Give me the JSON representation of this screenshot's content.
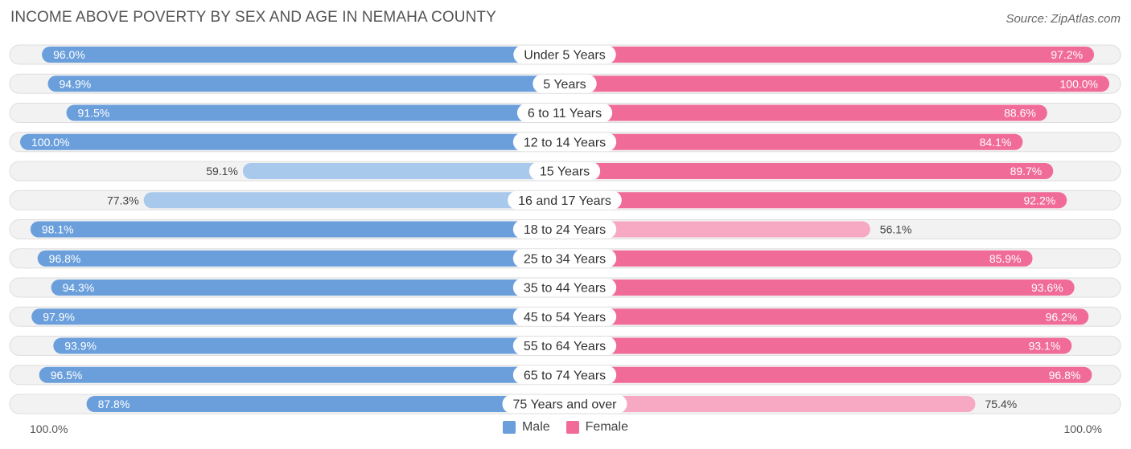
{
  "title": "INCOME ABOVE POVERTY BY SEX AND AGE IN NEMAHA COUNTY",
  "source": "Source: ZipAtlas.com",
  "axis": {
    "left_label": "100.0%",
    "right_label": "100.0%"
  },
  "legend": [
    {
      "label": "Male",
      "color": "#6a9fdc"
    },
    {
      "label": "Female",
      "color": "#f06b98"
    }
  ],
  "chart_data": {
    "type": "bar",
    "orientation": "horizontal-butterfly",
    "title": "INCOME ABOVE POVERTY BY SEX AND AGE IN NEMAHA COUNTY",
    "categories": [
      "Under 5 Years",
      "5 Years",
      "6 to 11 Years",
      "12 to 14 Years",
      "15 Years",
      "16 and 17 Years",
      "18 to 24 Years",
      "25 to 34 Years",
      "35 to 44 Years",
      "45 to 54 Years",
      "55 to 64 Years",
      "65 to 74 Years",
      "75 Years and over"
    ],
    "series": [
      {
        "name": "Male",
        "values": [
          96.0,
          94.9,
          91.5,
          100.0,
          59.1,
          77.3,
          98.1,
          96.8,
          94.3,
          97.9,
          93.9,
          96.5,
          87.8
        ],
        "labels": [
          "96.0%",
          "94.9%",
          "91.5%",
          "100.0%",
          "59.1%",
          "77.3%",
          "98.1%",
          "96.8%",
          "94.3%",
          "97.9%",
          "93.9%",
          "96.5%",
          "87.8%"
        ]
      },
      {
        "name": "Female",
        "values": [
          97.2,
          100.0,
          88.6,
          84.1,
          89.7,
          92.2,
          56.1,
          85.9,
          93.6,
          96.2,
          93.1,
          96.8,
          75.4
        ],
        "labels": [
          "97.2%",
          "100.0%",
          "88.6%",
          "84.1%",
          "89.7%",
          "92.2%",
          "56.1%",
          "85.9%",
          "93.6%",
          "96.2%",
          "93.1%",
          "96.8%",
          "75.4%"
        ]
      }
    ],
    "xlim": [
      0,
      100
    ],
    "unit": "%",
    "colors": {
      "male_strong": "#6a9fdc",
      "male_light": "#a8c8ec",
      "female_strong": "#f06b98",
      "female_light": "#f7a8c3",
      "row_background": "#f2f2f2",
      "row_border": "#dedede"
    }
  }
}
